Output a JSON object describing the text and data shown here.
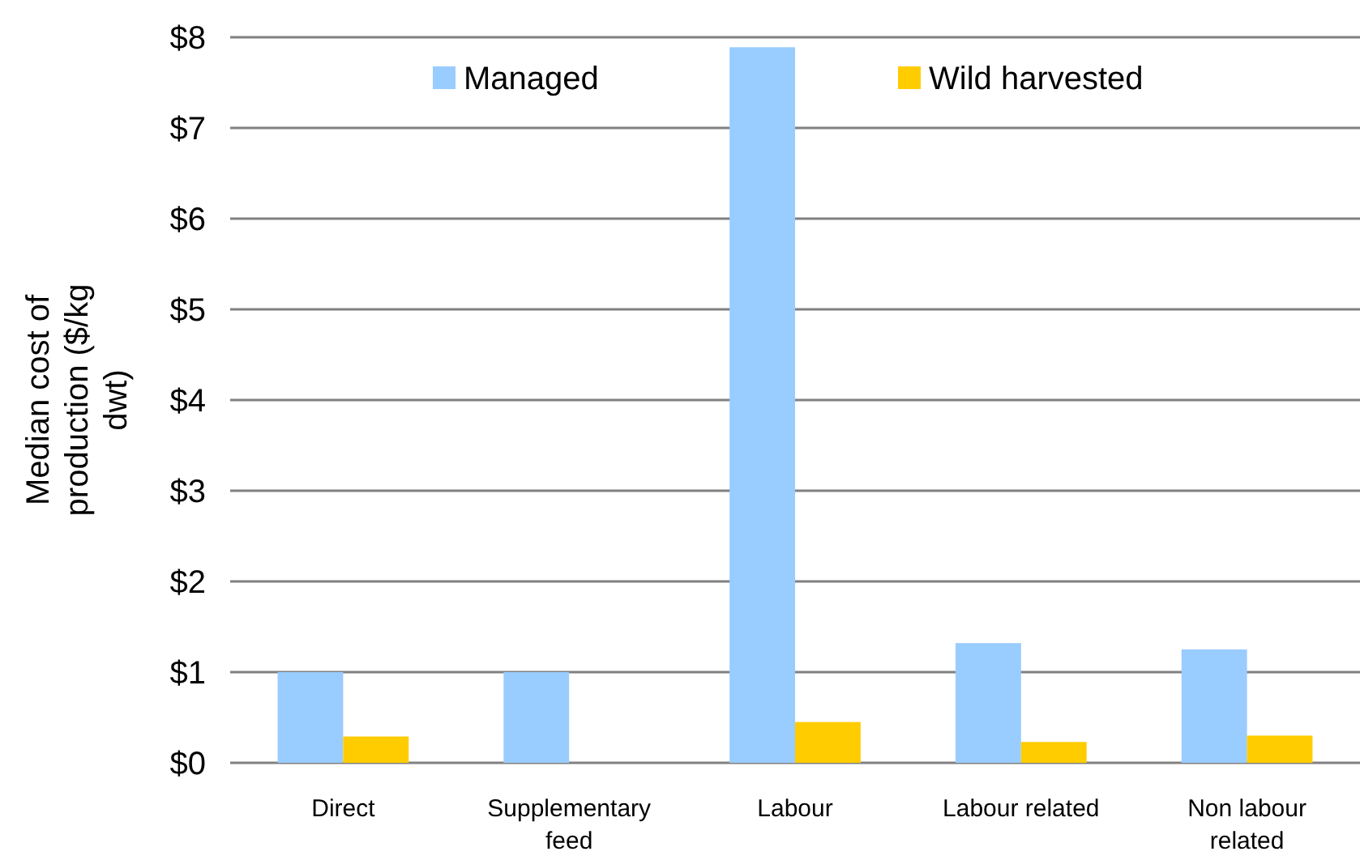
{
  "chart_data": {
    "type": "bar",
    "ylabel": "Median cost of production ($/kg dwt)",
    "categories": [
      "Direct",
      "Supplementary feed",
      "Labour",
      "Labour related",
      "Non labour related"
    ],
    "series": [
      {
        "name": "Managed",
        "color": "#99ccff",
        "values": [
          1.0,
          1.0,
          7.89,
          1.32,
          1.25
        ]
      },
      {
        "name": "Wild harvested",
        "color": "#ffcc00",
        "values": [
          0.29,
          null,
          0.45,
          0.23,
          0.3
        ]
      }
    ],
    "ylim": [
      0,
      8
    ],
    "yticks": [
      {
        "value": 0,
        "label": "$0"
      },
      {
        "value": 1,
        "label": "$1"
      },
      {
        "value": 2,
        "label": "$2"
      },
      {
        "value": 3,
        "label": "$3"
      },
      {
        "value": 4,
        "label": "$4"
      },
      {
        "value": 5,
        "label": "$5"
      },
      {
        "value": 6,
        "label": "$6"
      },
      {
        "value": 7,
        "label": "$7"
      },
      {
        "value": 8,
        "label": "$8"
      }
    ],
    "grid": "y",
    "legend": "top"
  }
}
